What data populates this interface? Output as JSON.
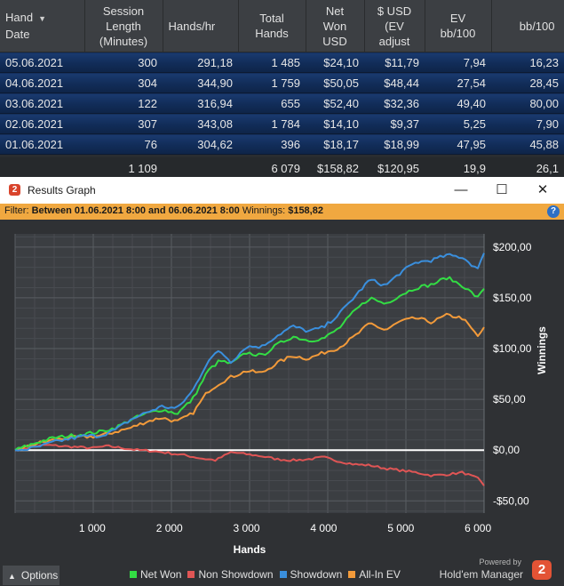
{
  "table": {
    "columns": [
      "Hand\nDate",
      "Session\nLength\n(Minutes)",
      "Hands/hr",
      "Total\nHands",
      "Net\nWon\nUSD",
      "$ USD\n(EV\nadjust",
      "EV\nbb/100",
      "bb/100"
    ],
    "sort_column": 0,
    "rows": [
      [
        "05.06.2021",
        "300",
        "291,18",
        "1 485",
        "$24,10",
        "$11,79",
        "7,94",
        "16,23"
      ],
      [
        "04.06.2021",
        "304",
        "344,90",
        "1 759",
        "$50,05",
        "$48,44",
        "27,54",
        "28,45"
      ],
      [
        "03.06.2021",
        "122",
        "316,94",
        "655",
        "$52,40",
        "$32,36",
        "49,40",
        "80,00"
      ],
      [
        "02.06.2021",
        "307",
        "343,08",
        "1 784",
        "$14,10",
        "$9,37",
        "5,25",
        "7,90"
      ],
      [
        "01.06.2021",
        "76",
        "304,62",
        "396",
        "$18,17",
        "$18,99",
        "47,95",
        "45,88"
      ]
    ],
    "totals": [
      "",
      "1 109",
      "",
      "6 079",
      "$158,82",
      "$120,95",
      "19,9",
      "26,1"
    ]
  },
  "window": {
    "title": "Results Graph",
    "icon_text": "2",
    "minimize_glyph": "—",
    "maximize_glyph": "☐",
    "close_glyph": "✕"
  },
  "filter": {
    "label": "Filter:",
    "range": "Between 01.06.2021 8:00 and 06.06.2021 8:00",
    "winnings_label": "Winnings:",
    "winnings_value": "$158,82",
    "help_glyph": "?"
  },
  "chart_data": {
    "type": "line",
    "xlabel": "Hands",
    "ylabel": "Winnings",
    "xlim": [
      0,
      6079
    ],
    "ylim": [
      -62,
      213
    ],
    "x_ticks": [
      1000,
      2000,
      3000,
      4000,
      5000,
      6000
    ],
    "x_tick_labels": [
      "1 000",
      "2 000",
      "3 000",
      "4 000",
      "5 000",
      "6 000"
    ],
    "y_ticks": [
      -50,
      0,
      50,
      100,
      150,
      200
    ],
    "y_tick_labels": [
      "-$50,00",
      "$0,00",
      "$50,00",
      "$100,00",
      "$150,00",
      "$200,00"
    ],
    "zero_line": true,
    "grid": true,
    "series": [
      {
        "name": "Net Won",
        "color": "#33dd44",
        "x": [
          0,
          150,
          300,
          500,
          700,
          900,
          1100,
          1300,
          1500,
          1700,
          1900,
          2100,
          2300,
          2500,
          2650,
          2800,
          3000,
          3200,
          3400,
          3600,
          3800,
          4000,
          4200,
          4400,
          4600,
          4800,
          5000,
          5200,
          5400,
          5600,
          5800,
          6000,
          6079
        ],
        "y": [
          0,
          4,
          8,
          12,
          14,
          16,
          18,
          22,
          30,
          36,
          40,
          36,
          50,
          78,
          88,
          85,
          96,
          93,
          104,
          112,
          108,
          110,
          120,
          137,
          150,
          144,
          153,
          160,
          163,
          170,
          162,
          150,
          159
        ]
      },
      {
        "name": "Non Showdown",
        "color": "#e05555",
        "x": [
          0,
          200,
          400,
          600,
          800,
          1000,
          1200,
          1400,
          1600,
          1800,
          2000,
          2200,
          2400,
          2600,
          2800,
          3000,
          3200,
          3400,
          3600,
          3800,
          4000,
          4200,
          4400,
          4600,
          4800,
          5000,
          5200,
          5400,
          5600,
          5800,
          6000,
          6079
        ],
        "y": [
          0,
          3,
          5,
          4,
          3,
          2,
          4,
          2,
          0,
          -1,
          -3,
          -5,
          -8,
          -10,
          -2,
          -4,
          -6,
          -9,
          -10,
          -9,
          -7,
          -11,
          -14,
          -15,
          -18,
          -20,
          -22,
          -25,
          -24,
          -22,
          -28,
          -35
        ]
      },
      {
        "name": "Showdown",
        "color": "#3a8fdd",
        "x": [
          0,
          150,
          300,
          500,
          700,
          900,
          1100,
          1300,
          1500,
          1700,
          1900,
          2100,
          2300,
          2500,
          2650,
          2800,
          3000,
          3200,
          3400,
          3600,
          3800,
          4000,
          4200,
          4400,
          4600,
          4800,
          5000,
          5200,
          5400,
          5600,
          5800,
          6000,
          6079
        ],
        "y": [
          0,
          1,
          3,
          8,
          11,
          14,
          14,
          20,
          30,
          37,
          43,
          41,
          58,
          88,
          98,
          87,
          102,
          102,
          113,
          122,
          117,
          121,
          134,
          151,
          168,
          162,
          175,
          185,
          187,
          192,
          190,
          178,
          194
        ]
      },
      {
        "name": "All-In EV",
        "color": "#f29a3a",
        "x": [
          0,
          150,
          300,
          500,
          700,
          900,
          1100,
          1300,
          1500,
          1700,
          1900,
          2100,
          2300,
          2500,
          2650,
          2800,
          3000,
          3200,
          3400,
          3600,
          3800,
          4000,
          4200,
          4400,
          4600,
          4800,
          5000,
          5200,
          5400,
          5600,
          5800,
          6000,
          6079
        ],
        "y": [
          0,
          3,
          7,
          10,
          12,
          13,
          14,
          18,
          22,
          28,
          32,
          28,
          36,
          58,
          66,
          72,
          78,
          76,
          86,
          93,
          90,
          96,
          101,
          112,
          125,
          118,
          127,
          130,
          126,
          133,
          130,
          112,
          121
        ]
      }
    ]
  },
  "options": {
    "label": "Options",
    "caret": "▲"
  },
  "legend": [
    {
      "label": "Net Won",
      "color": "#33dd44"
    },
    {
      "label": "Non Showdown",
      "color": "#e05555"
    },
    {
      "label": "Showdown",
      "color": "#3a8fdd"
    },
    {
      "label": "All-In EV",
      "color": "#f29a3a"
    }
  ],
  "branding": {
    "powered_by": "Powered by",
    "name": "Hold'em Manager",
    "logo": "2"
  }
}
